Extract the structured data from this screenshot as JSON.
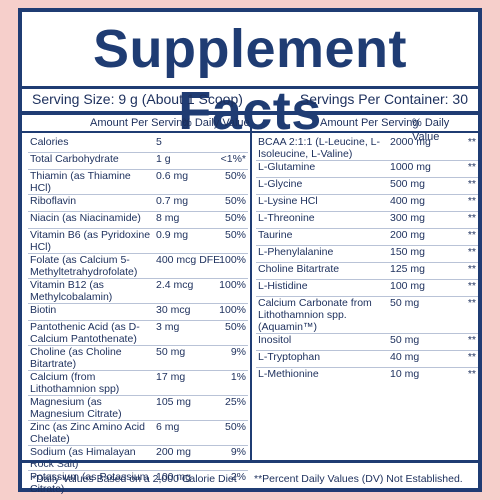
{
  "title": "Supplement Facts",
  "serving_size": "Serving Size: 9 g (About 1 Scoop)",
  "servings_per_container": "Servings Per Container: 30",
  "headers": {
    "left_amount": "Amount Per Serving",
    "left_dv": "% Daily Value",
    "right_amount": "Amount Per Serving",
    "right_dv": "% Daily Value"
  },
  "left_rows": [
    {
      "name": "Calories",
      "amount": "5",
      "dv": ""
    },
    {
      "name": "Total Carbohydrate",
      "amount": "1 g",
      "dv": "<1%*"
    },
    {
      "name": "Thiamin (as Thiamine HCl)",
      "amount": "0.6 mg",
      "dv": "50%"
    },
    {
      "name": "Riboflavin",
      "amount": "0.7 mg",
      "dv": "50%"
    },
    {
      "name": "Niacin (as Niacinamide)",
      "amount": "8 mg",
      "dv": "50%"
    },
    {
      "name": "Vitamin B6 (as Pyridoxine HCl)",
      "amount": "0.9 mg",
      "dv": "50%"
    },
    {
      "name": "Folate (as Calcium 5-Methyltetrahydrofolate)",
      "amount": "400 mcg DFE",
      "dv": "100%"
    },
    {
      "name": "Vitamin B12 (as Methylcobalamin)",
      "amount": "2.4 mcg",
      "dv": "100%"
    },
    {
      "name": "Biotin",
      "amount": "30 mcg",
      "dv": "100%"
    },
    {
      "name": "Pantothenic Acid (as D-Calcium Pantothenate)",
      "amount": "3 mg",
      "dv": "50%"
    },
    {
      "name": "Choline (as Choline Bitartrate)",
      "amount": "50 mg",
      "dv": "9%"
    },
    {
      "name": "Calcium (from Lithothamnion spp)",
      "amount": "17 mg",
      "dv": "1%"
    },
    {
      "name": "Magnesium (as Magnesium Citrate)",
      "amount": "105 mg",
      "dv": "25%"
    },
    {
      "name": "Zinc (as Zinc Amino Acid Chelate)",
      "amount": "6 mg",
      "dv": "50%"
    },
    {
      "name": "Sodium (as Himalayan Rock Salt)",
      "amount": "200 mg",
      "dv": "9%"
    },
    {
      "name": "Potassium (as Potassium Citrate)",
      "amount": "100 mg",
      "dv": "2%"
    }
  ],
  "right_rows": [
    {
      "name": "BCAA 2:1:1 (L-Leucine, L-Isoleucine, L-Valine)",
      "amount": "2000 mg",
      "dv": "**"
    },
    {
      "name": "L-Glutamine",
      "amount": "1000 mg",
      "dv": "**"
    },
    {
      "name": "L-Glycine",
      "amount": "500 mg",
      "dv": "**"
    },
    {
      "name": "L-Lysine HCl",
      "amount": "400 mg",
      "dv": "**"
    },
    {
      "name": "L-Threonine",
      "amount": "300 mg",
      "dv": "**"
    },
    {
      "name": "Taurine",
      "amount": "200 mg",
      "dv": "**"
    },
    {
      "name": "L-Phenylalanine",
      "amount": "150 mg",
      "dv": "**"
    },
    {
      "name": "Choline Bitartrate",
      "amount": "125 mg",
      "dv": "**"
    },
    {
      "name": "L-Histidine",
      "amount": "100 mg",
      "dv": "**"
    },
    {
      "name": "Calcium Carbonate from Lithothamnion spp. (Aquamin™)",
      "amount": "50 mg",
      "dv": "**"
    },
    {
      "name": "Inositol",
      "amount": "50 mg",
      "dv": "**"
    },
    {
      "name": "L-Tryptophan",
      "amount": "40 mg",
      "dv": "**"
    },
    {
      "name": "L-Methionine",
      "amount": "10 mg",
      "dv": "**"
    }
  ],
  "footnotes": {
    "left": "*Daily Values Based on a 2,000 Calorie Diet",
    "right": "**Percent Daily Values (DV) Not Established."
  },
  "colors": {
    "navy": "#1f3c73",
    "background": "#f6cfcb",
    "rule": "#b9c3d7"
  }
}
